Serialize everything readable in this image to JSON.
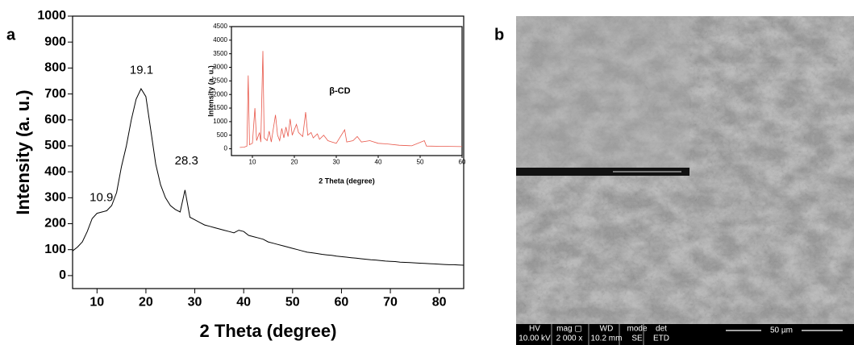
{
  "panels": {
    "a": "a",
    "b": "b"
  },
  "chart_data": [
    {
      "type": "line",
      "xlabel": "2 Theta (degree)",
      "ylabel": "Intensity (a. u.)",
      "xlim": [
        5,
        85
      ],
      "ylim": [
        -50,
        1000
      ],
      "xticks": [
        10,
        20,
        30,
        40,
        50,
        60,
        70,
        80
      ],
      "yticks": [
        0,
        100,
        200,
        300,
        400,
        500,
        600,
        700,
        800,
        900,
        1000
      ],
      "x": [
        5,
        6,
        7,
        8,
        9,
        10,
        11,
        12,
        13,
        14,
        15,
        16,
        17,
        18,
        19,
        20,
        21,
        22,
        23,
        24,
        25,
        26,
        27,
        28,
        29,
        30,
        31,
        32,
        33,
        34,
        35,
        36,
        37,
        38,
        39,
        40,
        41,
        42,
        43,
        44,
        45,
        46,
        47,
        48,
        49,
        50,
        51,
        52,
        53,
        54,
        55,
        56,
        57,
        58,
        59,
        60,
        61,
        62,
        63,
        64,
        65,
        66,
        67,
        68,
        69,
        70,
        71,
        72,
        73,
        74,
        75,
        76,
        77,
        78,
        79,
        80,
        81,
        82,
        83,
        84,
        85
      ],
      "series": [
        {
          "color": "#000000",
          "values": [
            95,
            110,
            130,
            170,
            220,
            240,
            245,
            250,
            270,
            320,
            420,
            500,
            600,
            680,
            720,
            690,
            560,
            430,
            350,
            300,
            270,
            255,
            245,
            330,
            225,
            215,
            205,
            195,
            190,
            185,
            180,
            175,
            170,
            165,
            175,
            170,
            155,
            150,
            145,
            140,
            130,
            125,
            120,
            115,
            110,
            105,
            100,
            95,
            90,
            88,
            85,
            82,
            80,
            78,
            75,
            73,
            71,
            69,
            67,
            65,
            63,
            61,
            60,
            58,
            56,
            55,
            54,
            52,
            51,
            50,
            49,
            48,
            47,
            46,
            45,
            44,
            43,
            42,
            42,
            41,
            40
          ]
        }
      ],
      "annotations": [
        {
          "label": "10.9",
          "x": 10.9,
          "y": 300
        },
        {
          "label": "19.1",
          "x": 19.1,
          "y": 790
        },
        {
          "label": "28.3",
          "x": 28.3,
          "y": 440
        }
      ]
    },
    {
      "type": "line",
      "title": "β-CD",
      "xlabel": "2 Theta (degree)",
      "ylabel": "Intensity (a. u.)",
      "xlim": [
        5,
        60
      ],
      "ylim": [
        -250,
        4500
      ],
      "xticks": [
        10,
        20,
        30,
        40,
        50,
        60
      ],
      "yticks": [
        0,
        500,
        1000,
        1500,
        2000,
        2500,
        3000,
        3500,
        4000,
        4500
      ],
      "x": [
        7,
        8,
        8.7,
        9,
        9.3,
        10,
        10.6,
        11,
        11.7,
        12,
        12.5,
        12.8,
        13.5,
        14,
        14.5,
        15.5,
        16,
        16.5,
        17,
        17.5,
        18,
        18.5,
        19,
        19.5,
        20.5,
        21,
        22,
        22.7,
        23.2,
        24,
        24.5,
        25.5,
        26,
        27,
        28,
        29,
        30,
        32,
        32.5,
        34,
        35,
        36,
        38,
        40,
        42,
        45,
        48,
        51,
        51.5,
        55,
        60
      ],
      "series": [
        {
          "color": "#e8574a",
          "values": [
            50,
            60,
            100,
            2700,
            150,
            200,
            1500,
            300,
            600,
            250,
            3600,
            400,
            300,
            650,
            250,
            1250,
            500,
            300,
            750,
            400,
            800,
            450,
            1100,
            500,
            900,
            600,
            450,
            1350,
            500,
            600,
            400,
            550,
            350,
            500,
            300,
            250,
            200,
            700,
            250,
            300,
            450,
            250,
            300,
            200,
            180,
            130,
            110,
            300,
            100,
            90,
            80
          ]
        }
      ]
    }
  ],
  "sem": {
    "fields": [
      [
        "HV",
        "10.00 kV"
      ],
      [
        "mag ▢",
        "2 000 x"
      ],
      [
        "WD",
        "10.2 mm"
      ],
      [
        "mode",
        "SE"
      ],
      [
        "det",
        "ETD"
      ]
    ],
    "scale_bar": "50 µm"
  }
}
